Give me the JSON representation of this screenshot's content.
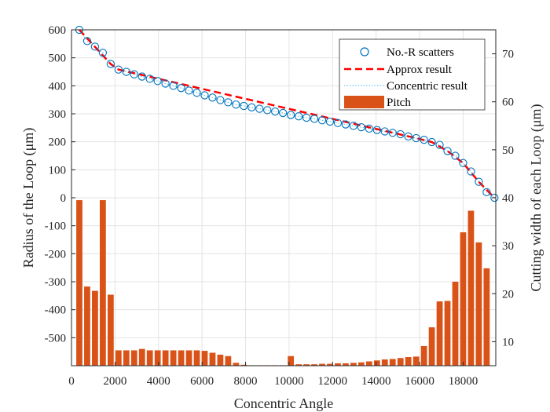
{
  "chart_data": {
    "type": "bar+line+scatter",
    "xlabel": "Concentric Angle",
    "ylabel_left": "Radius of the Loop (μm)",
    "ylabel_right": "Cutting width of each Loop (μm)",
    "xlim": [
      0,
      19500
    ],
    "ylim_left": [
      -600,
      600
    ],
    "ylim_right": [
      5,
      75
    ],
    "grid": true,
    "legend_position": "top-right",
    "xticks": [
      "0",
      "2000",
      "4000",
      "6000",
      "8000",
      "10000",
      "12000",
      "14000",
      "16000",
      "18000"
    ],
    "yticks_left": [
      "600",
      "500",
      "400",
      "300",
      "200",
      "100",
      "0",
      "-100",
      "-200",
      "-300",
      "-400",
      "-500"
    ],
    "yticks_right": [
      "70",
      "60",
      "50",
      "40",
      "30",
      "20",
      "10"
    ],
    "legend": [
      "No.-R scatters",
      "Approx result",
      "Concentric result",
      "Pitch"
    ],
    "colors": {
      "scatter": "#0072BD",
      "approx": "#FF0000",
      "concentric": "#4DBEEE",
      "pitch": "#D95319"
    },
    "scatter": {
      "name": "No.-R scatters",
      "x": [
        360,
        720,
        1080,
        1440,
        1800,
        2160,
        2520,
        2880,
        3240,
        3600,
        3960,
        4320,
        4680,
        5040,
        5400,
        5760,
        6120,
        6480,
        6840,
        7200,
        7560,
        7920,
        8280,
        8640,
        9000,
        9360,
        9720,
        10080,
        10440,
        10800,
        11160,
        11520,
        11880,
        12240,
        12600,
        12960,
        13320,
        13680,
        14040,
        14400,
        14760,
        15120,
        15480,
        15840,
        16200,
        16560,
        16920,
        17280,
        17640,
        18000,
        18360,
        18720,
        19080,
        19440
      ],
      "y": [
        600,
        560,
        540,
        518,
        478,
        458,
        450,
        441,
        433,
        425,
        417,
        408,
        400,
        392,
        383,
        375,
        366,
        358,
        349,
        341,
        333,
        328,
        323,
        318,
        313,
        308,
        303,
        296,
        291,
        286,
        282,
        277,
        272,
        267,
        262,
        257,
        252,
        247,
        242,
        237,
        232,
        227,
        219,
        213,
        207,
        199,
        189,
        167,
        150,
        124,
        94,
        57,
        20,
        0
      ]
    },
    "approx_line": {
      "name": "Approx result",
      "x": [
        360,
        1800,
        2160,
        15840,
        16560,
        17280,
        18000,
        18720,
        19440
      ],
      "y": [
        600,
        478,
        458,
        213,
        199,
        167,
        124,
        57,
        0
      ]
    },
    "concentric_line": {
      "name": "Concentric result",
      "x": [
        360,
        720,
        1080,
        1440,
        1800,
        2160,
        2520,
        2880,
        3240,
        3600,
        3960,
        4320,
        4680,
        5040,
        5400,
        5760,
        6120,
        6480,
        6840,
        7200,
        7560,
        7920,
        8280,
        8640,
        9000,
        9360,
        9720,
        10080,
        10440,
        10800,
        11160,
        11520,
        11880,
        12240,
        12600,
        12960,
        13320,
        13680,
        14040,
        14400,
        14760,
        15120,
        15480,
        15840,
        16200,
        16560,
        16920,
        17280,
        17640,
        18000,
        18360,
        18720,
        19080,
        19440
      ],
      "y": [
        600,
        560,
        540,
        518,
        478,
        458,
        450,
        441,
        433,
        425,
        417,
        408,
        400,
        392,
        383,
        375,
        366,
        358,
        349,
        341,
        333,
        328,
        323,
        318,
        313,
        308,
        303,
        296,
        291,
        286,
        282,
        277,
        272,
        267,
        262,
        257,
        252,
        247,
        242,
        237,
        232,
        227,
        219,
        213,
        207,
        199,
        189,
        167,
        150,
        124,
        94,
        57,
        20,
        0
      ]
    },
    "pitch": {
      "name": "Pitch",
      "x": [
        360,
        720,
        1080,
        1440,
        1800,
        2160,
        2520,
        2880,
        3240,
        3600,
        3960,
        4320,
        4680,
        5040,
        5400,
        5760,
        6120,
        6480,
        6840,
        7200,
        7560,
        7920,
        8280,
        8640,
        9000,
        9360,
        9720,
        10080,
        10440,
        10800,
        11160,
        11520,
        11880,
        12240,
        12600,
        12960,
        13320,
        13680,
        14040,
        14400,
        14760,
        15120,
        15480,
        15840,
        16200,
        16560,
        16920,
        17280,
        17640,
        18000,
        18360,
        18720,
        19080
      ],
      "values": [
        39.5,
        21.5,
        20.6,
        39.5,
        19.8,
        8.2,
        8.2,
        8.2,
        8.5,
        8.2,
        8.2,
        8.2,
        8.2,
        8.2,
        8.2,
        8.2,
        8.1,
        7.7,
        7.3,
        7.0,
        5.6,
        5.2,
        5.1,
        5.1,
        5.1,
        5.1,
        5.1,
        7.0,
        5.3,
        5.3,
        5.3,
        5.4,
        5.4,
        5.5,
        5.5,
        5.6,
        5.7,
        5.9,
        6.1,
        6.3,
        6.4,
        6.6,
        6.8,
        6.9,
        9.1,
        13.0,
        18.4,
        18.5,
        22.5,
        32.8,
        37.3,
        30.7,
        25.3
      ]
    }
  }
}
